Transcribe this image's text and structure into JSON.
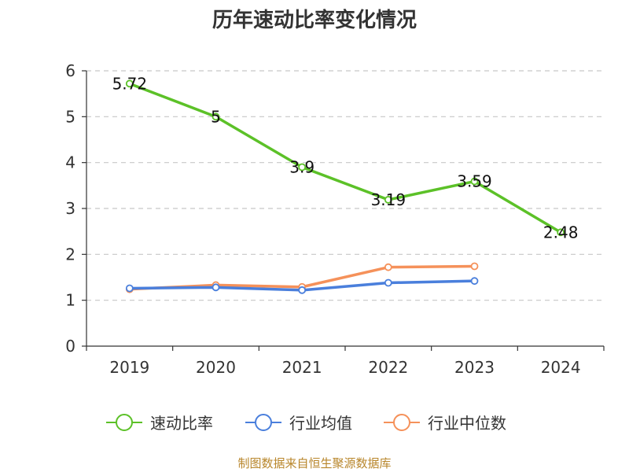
{
  "chart_data": {
    "type": "line",
    "title": "历年速动比率变化情况",
    "categories": [
      "2019",
      "2020",
      "2021",
      "2022",
      "2023",
      "2024"
    ],
    "ylim": [
      0,
      6
    ],
    "yticks": [
      0,
      1,
      2,
      3,
      4,
      5,
      6
    ],
    "grid": "horizontal dashed",
    "legend_position": "bottom",
    "series": [
      {
        "name": "速动比率",
        "color": "#5cc128",
        "values": [
          5.72,
          5,
          3.9,
          3.19,
          3.59,
          2.48
        ],
        "labels": [
          "5.72",
          "5",
          "3.9",
          "3.19",
          "3.59",
          "2.48"
        ]
      },
      {
        "name": "行业均值",
        "color": "#4a7fdc",
        "values": [
          1.26,
          1.28,
          1.22,
          1.38,
          1.42,
          null
        ]
      },
      {
        "name": "行业中位数",
        "color": "#f5915a",
        "values": [
          1.24,
          1.33,
          1.29,
          1.72,
          1.74,
          null
        ]
      }
    ]
  },
  "source_note": "制图数据来自恒生聚源数据库"
}
